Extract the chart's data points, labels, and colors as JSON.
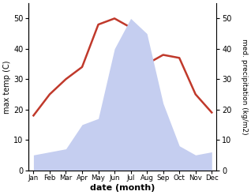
{
  "months": [
    "Jan",
    "Feb",
    "Mar",
    "Apr",
    "May",
    "Jun",
    "Jul",
    "Aug",
    "Sep",
    "Oct",
    "Nov",
    "Dec"
  ],
  "temp": [
    18,
    25,
    30,
    34,
    48,
    50,
    47,
    35,
    38,
    37,
    25,
    19
  ],
  "precip": [
    5,
    6,
    7,
    15,
    17,
    40,
    50,
    45,
    22,
    8,
    5,
    6
  ],
  "temp_color": "#c0392b",
  "precip_fill_color": "#c5cef0",
  "ylabel_left": "max temp (C)",
  "ylabel_right": "med. precipitation (kg/m2)",
  "xlabel": "date (month)",
  "ylim_left": [
    0,
    55
  ],
  "ylim_right": [
    0,
    55
  ],
  "yticks_left": [
    0,
    10,
    20,
    30,
    40,
    50
  ],
  "yticks_right": [
    0,
    10,
    20,
    30,
    40,
    50
  ],
  "background_color": "#ffffff"
}
